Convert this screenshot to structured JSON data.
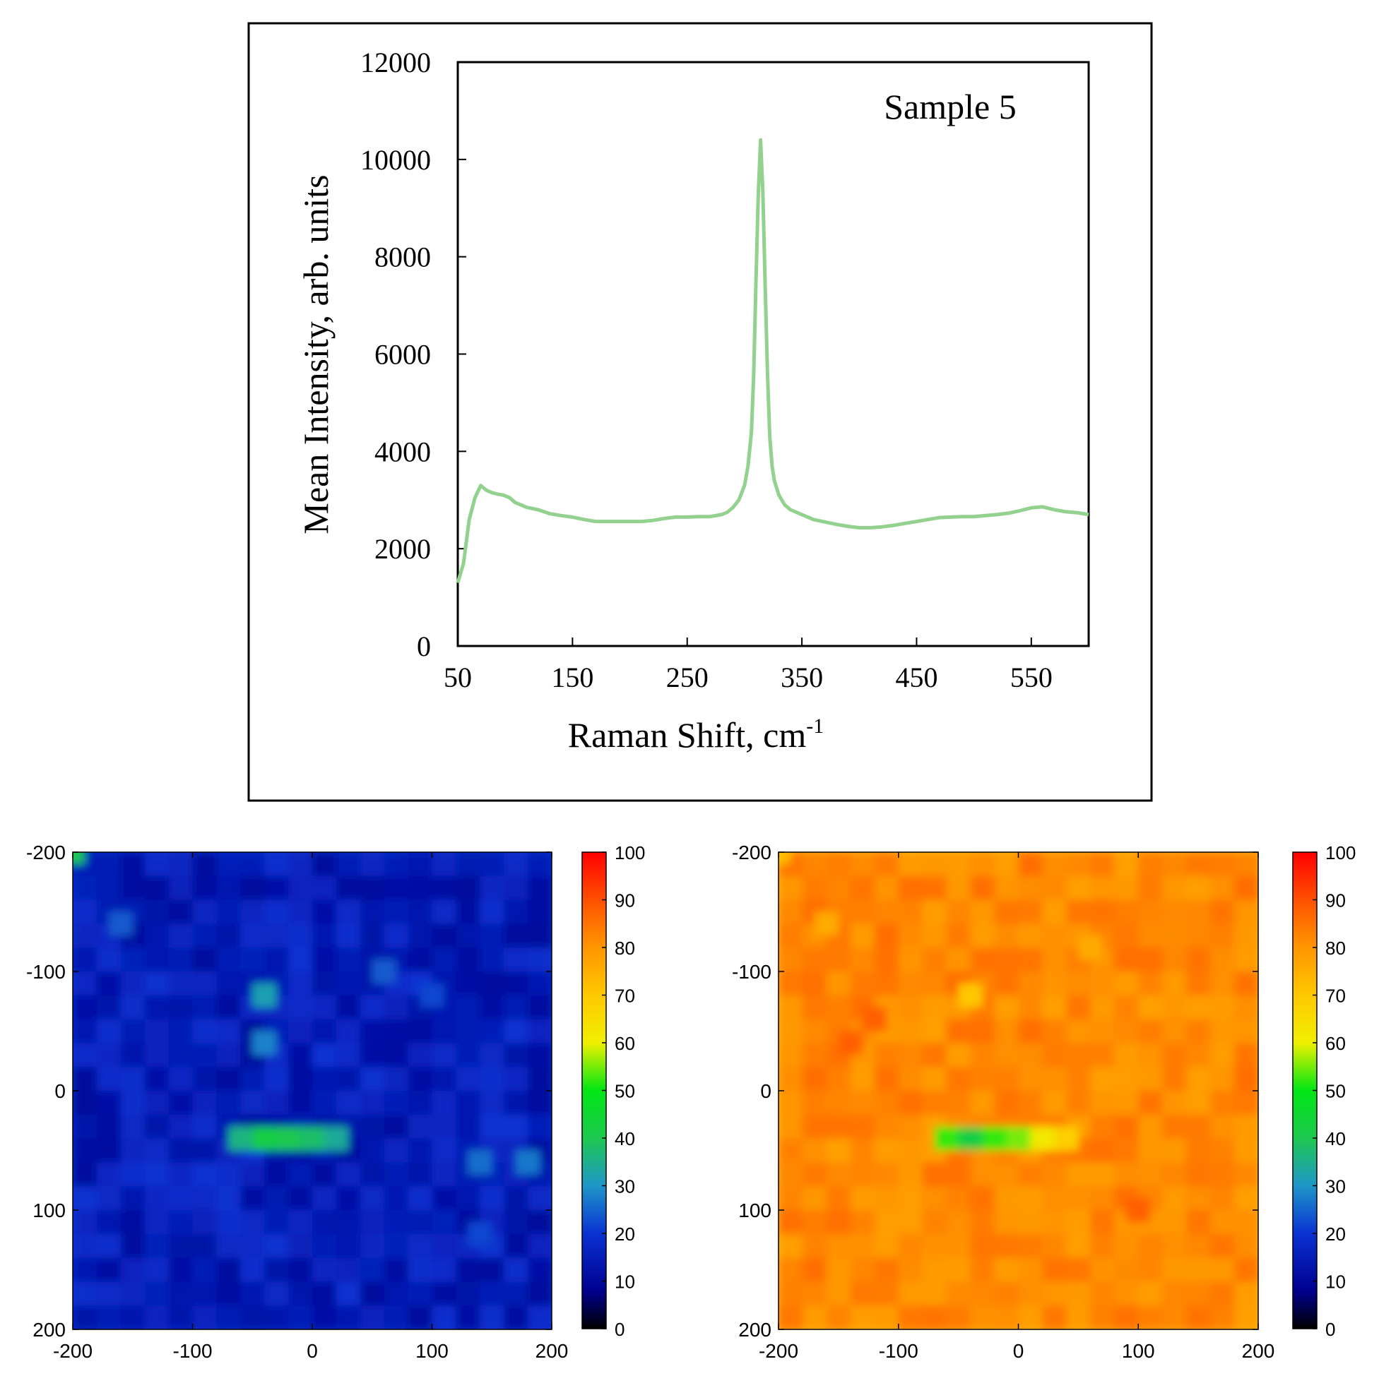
{
  "chart_data": [
    {
      "type": "line",
      "title": "",
      "annotation": "Sample 5",
      "xlabel": "Raman Shift, cm",
      "xlabel_sup": "-1",
      "ylabel": "Mean Intensity, arb. units",
      "xlim": [
        50,
        600
      ],
      "ylim": [
        0,
        12000
      ],
      "x_ticks": [
        50,
        150,
        250,
        350,
        450,
        550
      ],
      "x_tick_labels": [
        "50",
        "150",
        "250",
        "350",
        "450",
        "550"
      ],
      "y_ticks": [
        0,
        2000,
        4000,
        6000,
        8000,
        10000,
        12000
      ],
      "y_tick_labels": [
        "0",
        "2000",
        "4000",
        "6000",
        "8000",
        "10000",
        "12000"
      ],
      "line_color": "#93d18e",
      "series": [
        {
          "name": "Sample 5",
          "x": [
            50,
            55,
            60,
            65,
            70,
            75,
            80,
            85,
            90,
            95,
            100,
            110,
            120,
            130,
            140,
            150,
            160,
            170,
            180,
            190,
            200,
            210,
            220,
            230,
            240,
            250,
            260,
            270,
            280,
            285,
            290,
            295,
            300,
            303,
            306,
            308,
            310,
            312,
            314,
            316,
            318,
            320,
            322,
            324,
            326,
            330,
            335,
            340,
            350,
            360,
            370,
            380,
            390,
            400,
            410,
            420,
            430,
            440,
            450,
            460,
            470,
            480,
            490,
            500,
            510,
            520,
            530,
            540,
            550,
            560,
            570,
            580,
            590,
            600
          ],
          "y": [
            1300,
            1700,
            2600,
            3050,
            3300,
            3200,
            3150,
            3120,
            3100,
            3050,
            2950,
            2850,
            2800,
            2720,
            2680,
            2650,
            2600,
            2560,
            2560,
            2560,
            2560,
            2560,
            2580,
            2620,
            2650,
            2650,
            2660,
            2660,
            2700,
            2750,
            2850,
            3000,
            3300,
            3700,
            4400,
            5600,
            7500,
            9300,
            10400,
            9300,
            7400,
            5600,
            4300,
            3700,
            3400,
            3100,
            2900,
            2800,
            2700,
            2600,
            2550,
            2500,
            2460,
            2430,
            2430,
            2450,
            2480,
            2520,
            2560,
            2600,
            2640,
            2650,
            2660,
            2660,
            2680,
            2700,
            2730,
            2780,
            2840,
            2860,
            2800,
            2760,
            2740,
            2700
          ]
        }
      ]
    },
    {
      "type": "heatmap",
      "title": "",
      "xlim": [
        -200,
        200
      ],
      "ylim": [
        -200,
        200
      ],
      "x_tick_labels": [
        "-200",
        "-100",
        "0",
        "100",
        "200"
      ],
      "y_tick_labels": [
        "-200",
        "-100",
        "0",
        "100",
        "200"
      ],
      "colorbar_range": [
        0,
        100
      ],
      "colorbar_tick_labels": [
        "100",
        "90",
        "80",
        "70",
        "60",
        "50",
        "40",
        "30",
        "20",
        "10",
        "0"
      ],
      "base_value": 15,
      "spread": 5,
      "features": [
        {
          "x": -40,
          "y": 40,
          "value": 42
        },
        {
          "x": -20,
          "y": 40,
          "value": 40
        },
        {
          "x": 0,
          "y": 40,
          "value": 38
        },
        {
          "x": 20,
          "y": 40,
          "value": 34
        },
        {
          "x": -60,
          "y": 40,
          "value": 36
        },
        {
          "x": -40,
          "y": -80,
          "value": 32
        },
        {
          "x": -40,
          "y": -40,
          "value": 28
        },
        {
          "x": 140,
          "y": 60,
          "value": 26
        },
        {
          "x": 180,
          "y": 60,
          "value": 27
        },
        {
          "x": -160,
          "y": -140,
          "value": 24
        },
        {
          "x": -200,
          "y": -200,
          "value": 40
        },
        {
          "x": 60,
          "y": -100,
          "value": 24
        },
        {
          "x": 100,
          "y": -80,
          "value": 22
        },
        {
          "x": 140,
          "y": 120,
          "value": 22
        }
      ]
    },
    {
      "type": "heatmap",
      "title": "",
      "xlim": [
        -200,
        200
      ],
      "ylim": [
        -200,
        200
      ],
      "x_tick_labels": [
        "-200",
        "-100",
        "0",
        "100",
        "200"
      ],
      "y_tick_labels": [
        "-200",
        "-100",
        "0",
        "100",
        "200"
      ],
      "colorbar_range": [
        0,
        100
      ],
      "colorbar_tick_labels": [
        "100",
        "90",
        "80",
        "70",
        "60",
        "50",
        "40",
        "30",
        "20",
        "10",
        "0"
      ],
      "base_value": 82,
      "spread": 4,
      "features": [
        {
          "x": -40,
          "y": 40,
          "value": 42
        },
        {
          "x": -20,
          "y": 40,
          "value": 52
        },
        {
          "x": 0,
          "y": 40,
          "value": 55
        },
        {
          "x": 20,
          "y": 40,
          "value": 62
        },
        {
          "x": 40,
          "y": 40,
          "value": 68
        },
        {
          "x": -60,
          "y": 40,
          "value": 52
        },
        {
          "x": -40,
          "y": -80,
          "value": 70
        },
        {
          "x": -140,
          "y": -40,
          "value": 88
        },
        {
          "x": -120,
          "y": -60,
          "value": 88
        },
        {
          "x": 100,
          "y": 100,
          "value": 88
        },
        {
          "x": -200,
          "y": -200,
          "value": 72
        },
        {
          "x": -160,
          "y": -140,
          "value": 76
        },
        {
          "x": 60,
          "y": -120,
          "value": 76
        }
      ]
    }
  ]
}
